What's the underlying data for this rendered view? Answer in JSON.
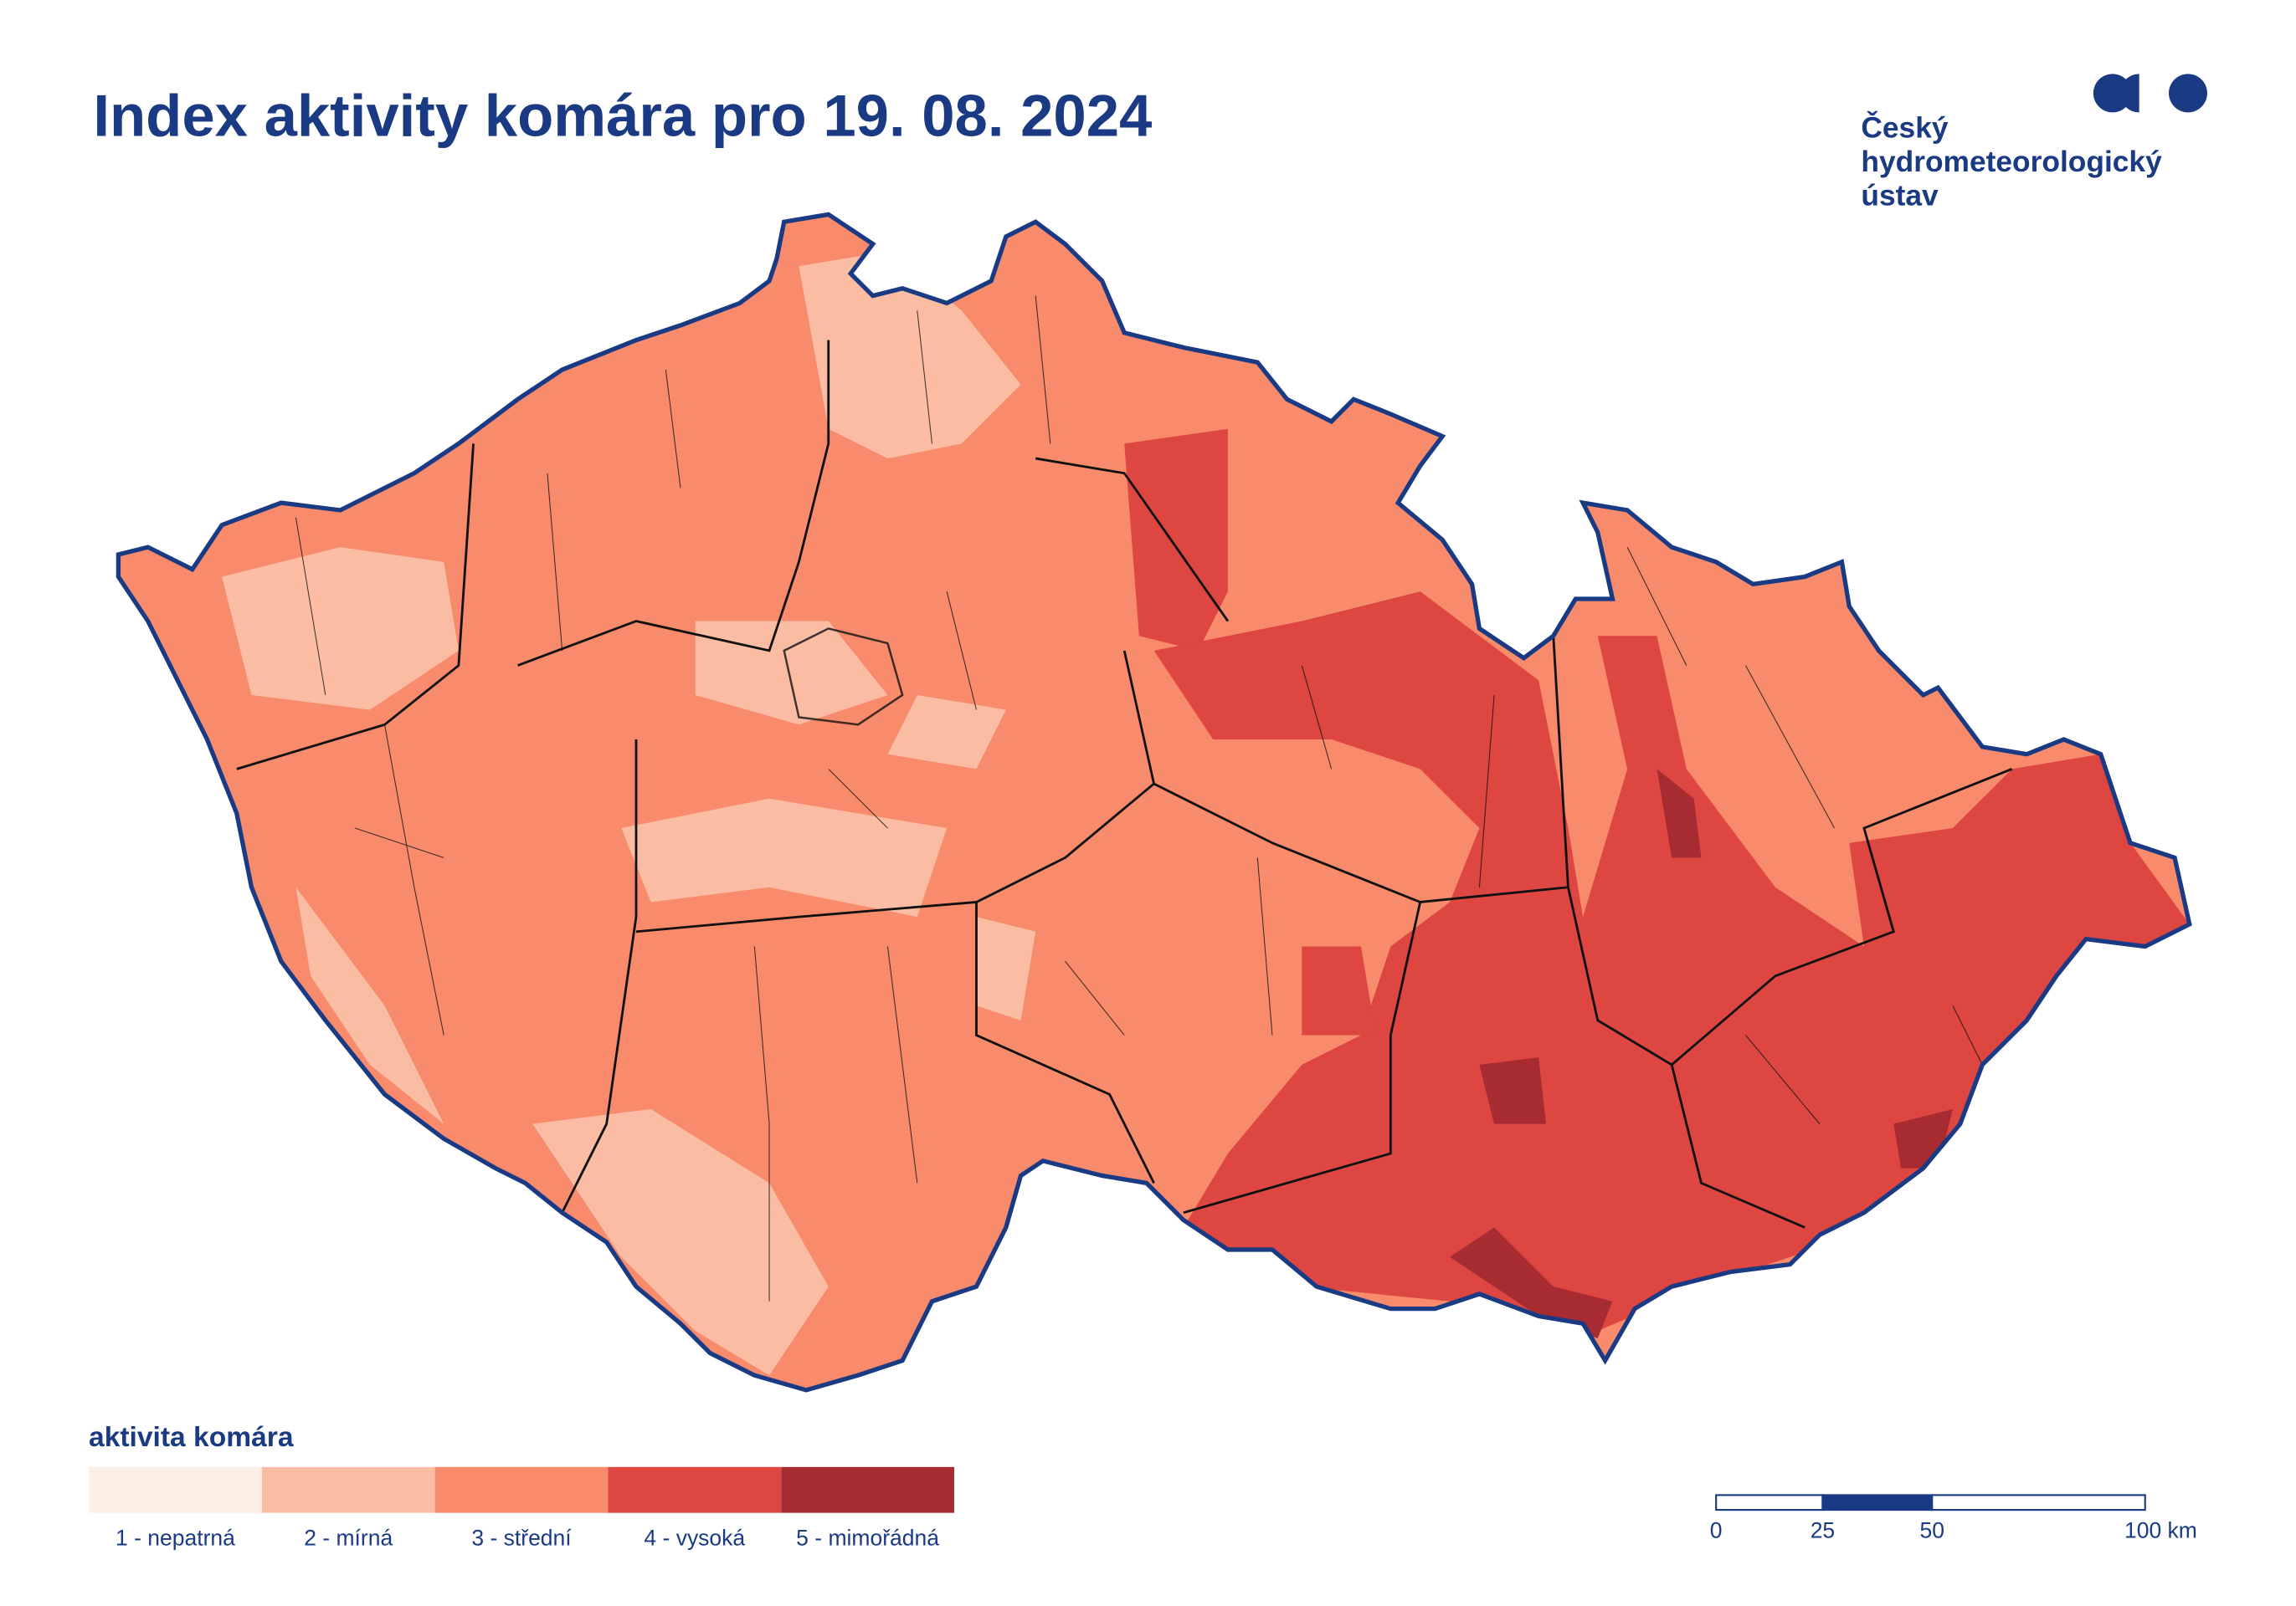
{
  "header": {
    "title": "Index aktivity komára pro 19. 08. 2024"
  },
  "logo": {
    "lines": [
      "Český",
      "hydrometeorologický",
      "ústav"
    ]
  },
  "legend": {
    "title": "aktivita komára",
    "items": [
      {
        "label": "1 - nepatrná",
        "color": "#fdefe6"
      },
      {
        "label": "2 - mírná",
        "color": "#fbbca4"
      },
      {
        "label": "3 - střední",
        "color": "#f88b6c"
      },
      {
        "label": "4 - vysoká",
        "color": "#dd4641"
      },
      {
        "label": "5 - mimořádná",
        "color": "#a62c31"
      }
    ]
  },
  "scale_bar": {
    "labels": [
      "0",
      "25",
      "50",
      "100 km"
    ]
  }
}
